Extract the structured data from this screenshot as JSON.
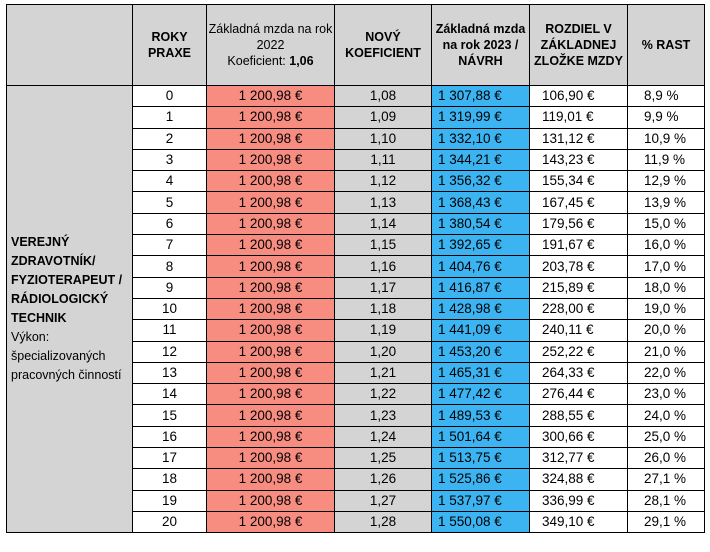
{
  "headers": {
    "category": "",
    "years": "ROKY PRAXE",
    "base2022": "Základná mzda na rok 2022",
    "base2022_coef_label": "Koeficient: ",
    "base2022_coef_value": "1,06",
    "new_coef": "NOVÝ KOEFICIENT",
    "base2023": "Základná mzda na rok 2023 / NÁVRH",
    "difference": "ROZDIEL V ZÁKLADNEJ ZLOŽKE MZDY",
    "growth": "% RAST"
  },
  "category": {
    "title": "VEREJNÝ ZDRAVOTNÍK/ FYZIOTERAPEUT / RÁDIOLOGICKÝ TECHNIK",
    "subtitle": "Výkon: špecializovaných pracovných činností"
  },
  "colors": {
    "header_bg": "#d4d4d4",
    "salary_2022_bg": "#f78c80",
    "coefficient_bg": "#d4d4d4",
    "proposal_2023_bg": "#3cb4f2"
  },
  "rows": [
    {
      "years": "0",
      "base2022": "1 200,98 €",
      "coef": "1,08",
      "base2023": "1 307,88 €",
      "difference": "106,90 €",
      "growth": "8,9 %"
    },
    {
      "years": "1",
      "base2022": "1 200,98 €",
      "coef": "1,09",
      "base2023": "1 319,99 €",
      "difference": "119,01 €",
      "growth": "9,9 %"
    },
    {
      "years": "2",
      "base2022": "1 200,98 €",
      "coef": "1,10",
      "base2023": "1 332,10 €",
      "difference": "131,12 €",
      "growth": "10,9 %"
    },
    {
      "years": "3",
      "base2022": "1 200,98 €",
      "coef": "1,11",
      "base2023": "1 344,21 €",
      "difference": "143,23 €",
      "growth": "11,9 %"
    },
    {
      "years": "4",
      "base2022": "1 200,98 €",
      "coef": "1,12",
      "base2023": "1 356,32 €",
      "difference": "155,34 €",
      "growth": "12,9 %"
    },
    {
      "years": "5",
      "base2022": "1 200,98 €",
      "coef": "1,13",
      "base2023": "1 368,43 €",
      "difference": "167,45 €",
      "growth": "13,9 %"
    },
    {
      "years": "6",
      "base2022": "1 200,98 €",
      "coef": "1,14",
      "base2023": "1 380,54 €",
      "difference": "179,56 €",
      "growth": "15,0 %"
    },
    {
      "years": "7",
      "base2022": "1 200,98 €",
      "coef": "1,15",
      "base2023": "1 392,65 €",
      "difference": "191,67 €",
      "growth": "16,0 %"
    },
    {
      "years": "8",
      "base2022": "1 200,98 €",
      "coef": "1,16",
      "base2023": "1 404,76 €",
      "difference": "203,78 €",
      "growth": "17,0 %"
    },
    {
      "years": "9",
      "base2022": "1 200,98 €",
      "coef": "1,17",
      "base2023": "1 416,87 €",
      "difference": "215,89 €",
      "growth": "18,0 %"
    },
    {
      "years": "10",
      "base2022": "1 200,98 €",
      "coef": "1,18",
      "base2023": "1 428,98 €",
      "difference": "228,00 €",
      "growth": "19,0 %"
    },
    {
      "years": "11",
      "base2022": "1 200,98 €",
      "coef": "1,19",
      "base2023": "1 441,09 €",
      "difference": "240,11 €",
      "growth": "20,0 %"
    },
    {
      "years": "12",
      "base2022": "1 200,98 €",
      "coef": "1,20",
      "base2023": "1 453,20 €",
      "difference": "252,22 €",
      "growth": "21,0 %"
    },
    {
      "years": "13",
      "base2022": "1 200,98 €",
      "coef": "1,21",
      "base2023": "1 465,31 €",
      "difference": "264,33 €",
      "growth": "22,0 %"
    },
    {
      "years": "14",
      "base2022": "1 200,98 €",
      "coef": "1,22",
      "base2023": "1 477,42 €",
      "difference": "276,44 €",
      "growth": "23,0 %"
    },
    {
      "years": "15",
      "base2022": "1 200,98 €",
      "coef": "1,23",
      "base2023": "1 489,53 €",
      "difference": "288,55 €",
      "growth": "24,0 %"
    },
    {
      "years": "16",
      "base2022": "1 200,98 €",
      "coef": "1,24",
      "base2023": "1 501,64 €",
      "difference": "300,66 €",
      "growth": "25,0 %"
    },
    {
      "years": "17",
      "base2022": "1 200,98 €",
      "coef": "1,25",
      "base2023": "1 513,75 €",
      "difference": "312,77 €",
      "growth": "26,0 %"
    },
    {
      "years": "18",
      "base2022": "1 200,98 €",
      "coef": "1,26",
      "base2023": "1 525,86 €",
      "difference": "324,88 €",
      "growth": "27,1 %"
    },
    {
      "years": "19",
      "base2022": "1 200,98 €",
      "coef": "1,27",
      "base2023": "1 537,97 €",
      "difference": "336,99 €",
      "growth": "28,1 %"
    },
    {
      "years": "20",
      "base2022": "1 200,98 €",
      "coef": "1,28",
      "base2023": "1 550,08 €",
      "difference": "349,10 €",
      "growth": "29,1 %"
    }
  ]
}
